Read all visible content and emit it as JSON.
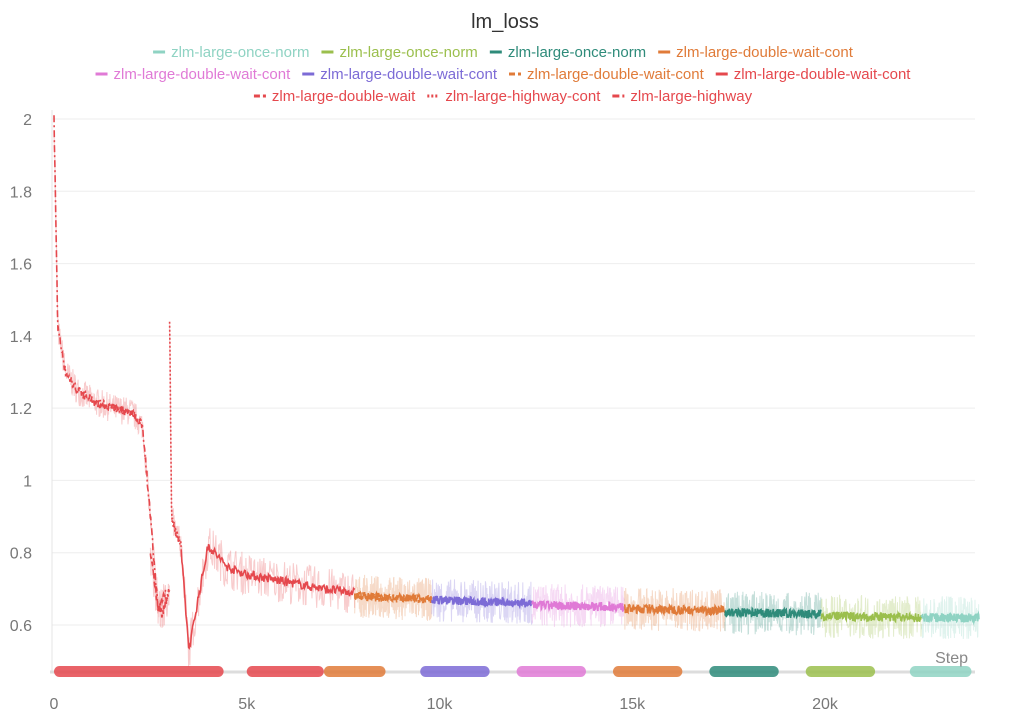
{
  "chart_data": {
    "type": "line",
    "title": "lm_loss",
    "xlabel": "Step",
    "ylabel": "",
    "xlim": [
      0,
      24000
    ],
    "ylim": [
      0.47,
      2.0
    ],
    "grid": true,
    "legend_placement": "top",
    "x_ticks": [
      0,
      5000,
      10000,
      15000,
      20000
    ],
    "x_tick_labels": [
      "0",
      "5k",
      "10k",
      "15k",
      "20k"
    ],
    "y_ticks": [
      0.6,
      0.8,
      1,
      1.2,
      1.4,
      1.6,
      1.8,
      2
    ],
    "y_tick_labels": [
      "0.6",
      "0.8",
      "1",
      "1.2",
      "1.4",
      "1.6",
      "1.8",
      "2"
    ],
    "series": [
      {
        "name": "zlm-large-once-norm",
        "color": "#8fd3c3",
        "dash": "solid",
        "x": [
          22500,
          24000
        ],
        "y": [
          0.62,
          0.62
        ]
      },
      {
        "name": "zlm-large-once-norm",
        "color": "#9bbf4d",
        "dash": "solid",
        "x": [
          19900,
          22500
        ],
        "y": [
          0.625,
          0.62
        ]
      },
      {
        "name": "zlm-large-once-norm",
        "color": "#2e8b7a",
        "dash": "solid",
        "x": [
          17400,
          19900
        ],
        "y": [
          0.635,
          0.63
        ]
      },
      {
        "name": "zlm-large-double-wait-cont",
        "color": "#e07b39",
        "dash": "solid",
        "x": [
          14800,
          17400
        ],
        "y": [
          0.645,
          0.64
        ]
      },
      {
        "name": "zlm-large-double-wait-cont",
        "color": "#e07ad6",
        "dash": "solid",
        "x": [
          12400,
          14800
        ],
        "y": [
          0.655,
          0.65
        ]
      },
      {
        "name": "zlm-large-double-wait-cont",
        "color": "#7c6bd6",
        "dash": "solid",
        "x": [
          9800,
          12400
        ],
        "y": [
          0.67,
          0.66
        ]
      },
      {
        "name": "zlm-large-double-wait-cont",
        "color": "#e07b39",
        "dash": "dashed",
        "x": [
          7800,
          9800
        ],
        "y": [
          0.68,
          0.67
        ]
      },
      {
        "name": "zlm-large-double-wait-cont",
        "color": "#e5484d",
        "dash": "solid",
        "x": [
          3300,
          3500,
          3700,
          4000,
          4500,
          5000,
          6000,
          7000,
          7800
        ],
        "y": [
          0.8,
          0.53,
          0.65,
          0.82,
          0.76,
          0.74,
          0.72,
          0.7,
          0.69
        ]
      },
      {
        "name": "zlm-large-double-wait",
        "color": "#e5484d",
        "dash": "dashed",
        "x": [
          2500,
          2700,
          2800,
          3000
        ],
        "y": [
          0.8,
          0.65,
          0.63,
          0.7
        ]
      },
      {
        "name": "zlm-large-highway-cont",
        "color": "#e5484d",
        "dash": "dotted",
        "x": [
          3000,
          3050,
          3150,
          3300
        ],
        "y": [
          1.44,
          0.9,
          0.86,
          0.82
        ]
      },
      {
        "name": "zlm-large-highway",
        "color": "#e5484d",
        "dash": "dashdot",
        "x": [
          0,
          100,
          300,
          600,
          1000,
          1500,
          2000,
          2300,
          2500,
          2700,
          2900
        ],
        "y": [
          2.0,
          1.42,
          1.3,
          1.25,
          1.22,
          1.2,
          1.19,
          1.15,
          0.9,
          0.64,
          0.7
        ]
      }
    ]
  }
}
